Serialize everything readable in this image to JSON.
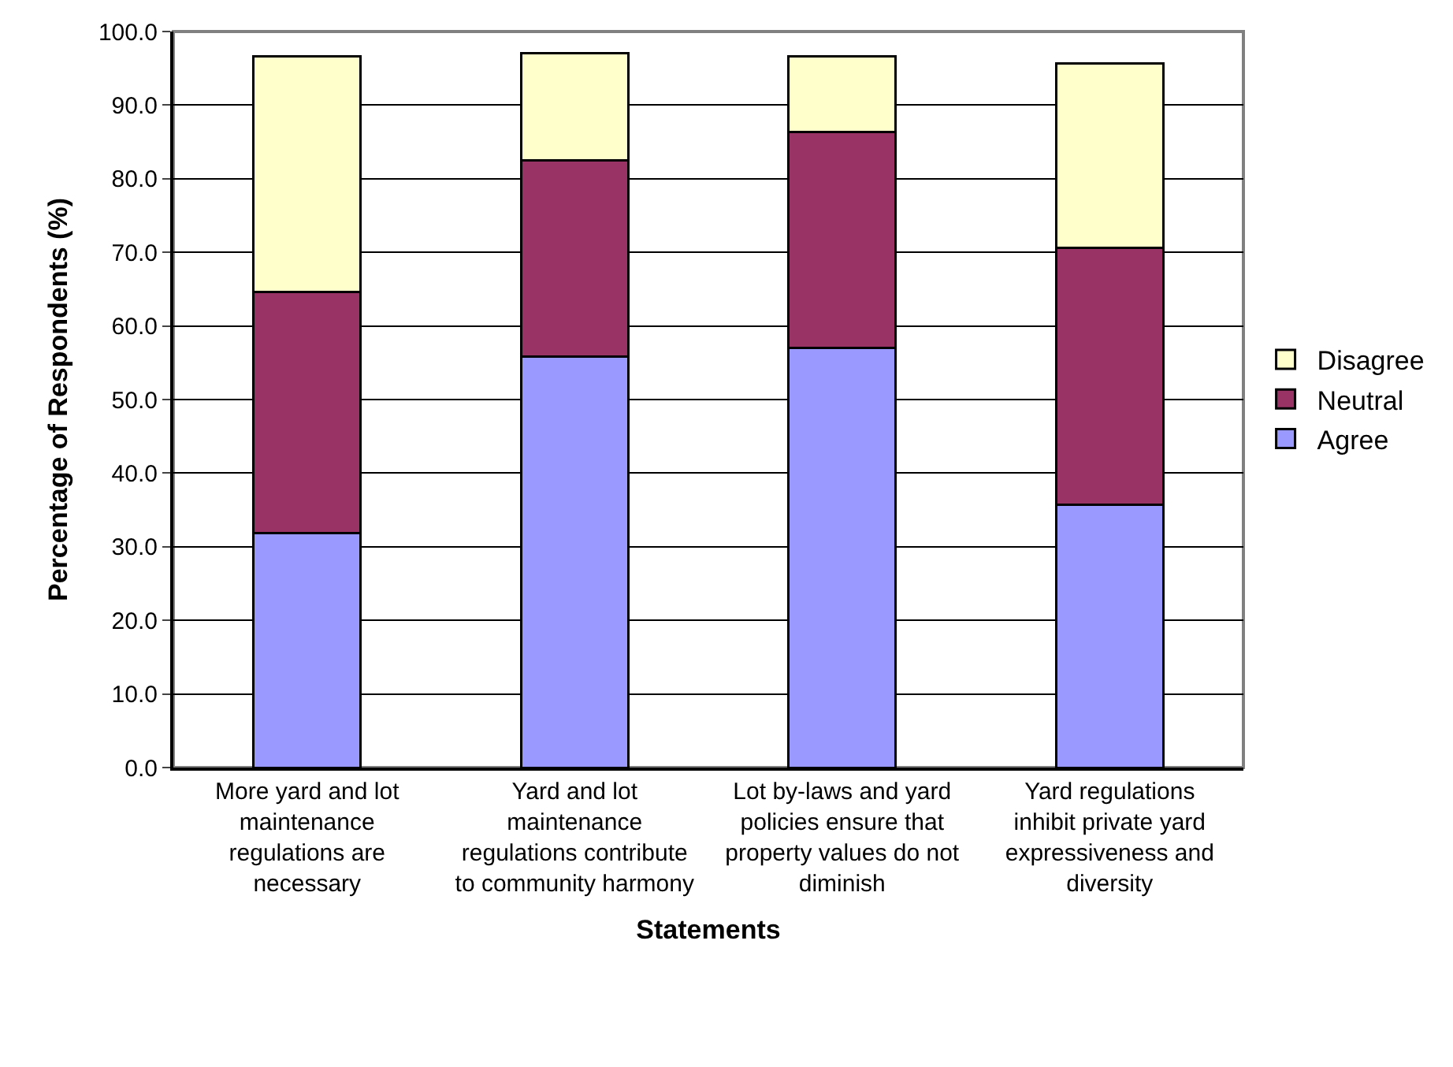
{
  "chart_data": {
    "type": "bar",
    "stacked": true,
    "xlabel": "Statements",
    "ylabel": "Percentage of Respondents (%)",
    "categories": [
      "More yard and lot maintenance regulations are necessary",
      "Yard and lot maintenance regulations contribute to community harmony",
      "Lot by-laws and yard policies ensure that property values do not diminish",
      "Yard regulations inhibit private yard expressiveness and diversity"
    ],
    "series": [
      {
        "name": "Agree",
        "color": "#9999ff",
        "values": [
          31.8,
          55.8,
          57.0,
          35.7
        ]
      },
      {
        "name": "Neutral",
        "color": "#993366",
        "values": [
          32.8,
          26.7,
          29.4,
          34.9
        ]
      },
      {
        "name": "Disagree",
        "color": "#ffffcc",
        "values": [
          32.0,
          14.6,
          10.2,
          25.1
        ]
      }
    ],
    "ylim": [
      0,
      100
    ],
    "yticks": [
      {
        "value": 0,
        "label": "0.0"
      },
      {
        "value": 10,
        "label": "10.0"
      },
      {
        "value": 20,
        "label": "20.0"
      },
      {
        "value": 30,
        "label": "30.0"
      },
      {
        "value": 40,
        "label": "40.0"
      },
      {
        "value": 50,
        "label": "50.0"
      },
      {
        "value": 60,
        "label": "60.0"
      },
      {
        "value": 70,
        "label": "70.0"
      },
      {
        "value": 80,
        "label": "80.0"
      },
      {
        "value": 90,
        "label": "90.0"
      },
      {
        "value": 100,
        "label": "100.0"
      }
    ],
    "grid": "y",
    "legend": "right"
  }
}
